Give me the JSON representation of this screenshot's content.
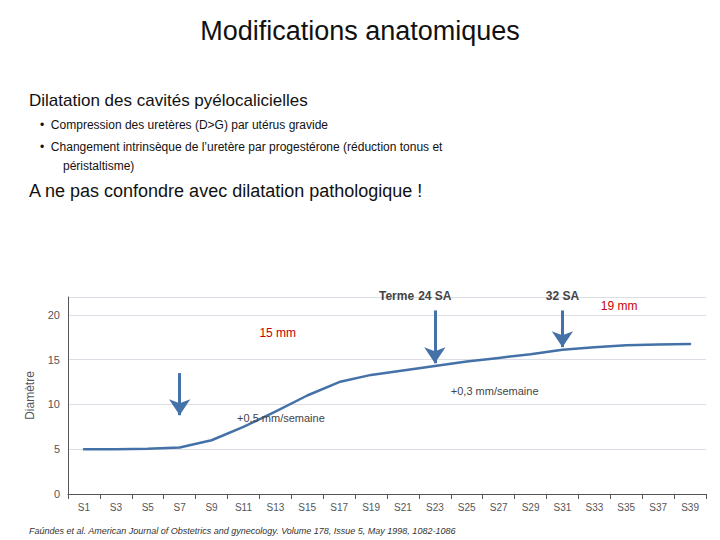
{
  "chart_data": {
    "type": "line",
    "title": "Modifications anatomiques",
    "subtitle": "Dilatation des cavités pyélocalicielles",
    "bullets": [
      "•  Compression des uretères (D>G) par utérus gravide",
      "•  Changement intrinsèque de l’uretère par progestérone (réduction tonus et",
      "péristaltisme)"
    ],
    "text": "A ne pas confondre avec dilatation pathologique !",
    "footnote": "Faúndes et al. American Journal of Obstetrics and gynecology. Volume 178, Issue 5, May 1998, 1082-1086",
    "categories": [
      "S1",
      "S3",
      "S5",
      "S7",
      "S9",
      "S11",
      "S13",
      "S15",
      "S17",
      "S19",
      "S21",
      "S23",
      "S25",
      "S27",
      "S29",
      "S31",
      "S33",
      "S35",
      "S37",
      "S39"
    ],
    "values": [
      5.0,
      5.0,
      5.05,
      5.2,
      6.0,
      7.5,
      9.2,
      11.0,
      12.5,
      13.3,
      13.8,
      14.3,
      14.8,
      15.2,
      15.6,
      16.1,
      16.4,
      16.6,
      16.7,
      16.75
    ],
    "color": "#4472a8",
    "ylabel": "Diamètre",
    "ylim": [
      0,
      22
    ],
    "yticks": [
      0,
      5,
      10,
      15,
      20
    ],
    "grid": true,
    "arrows": [
      {
        "x": "S7",
        "from": 13.5,
        "to": 8.8,
        "color": "#4472a8"
      },
      {
        "x": "S23",
        "from": 20.5,
        "to": 14.6,
        "color": "#4472a8"
      },
      {
        "x": "S31",
        "from": 20.5,
        "to": 16.4,
        "color": "#4472a8"
      }
    ],
    "annotations": [
      {
        "text": "Terme",
        "x": 9.8,
        "y": 21.4
      },
      {
        "text": "24 SA",
        "x": 11.0,
        "y": 21.4
      },
      {
        "text": "32 SA",
        "x": 15.0,
        "y": 21.4
      },
      {
        "text": "15 mm",
        "x": 5.5,
        "y": 18.0,
        "color": "#cc0000"
      },
      {
        "text": "19 mm",
        "x": 16.2,
        "y": 21.0,
        "color": "#cc0000"
      },
      {
        "text": "+0,5 mm/semaine",
        "x": 4.8,
        "y": 8.5
      },
      {
        "text": "+0,3 mm/semaine",
        "x": 11.5,
        "y": 11.5
      }
    ]
  }
}
